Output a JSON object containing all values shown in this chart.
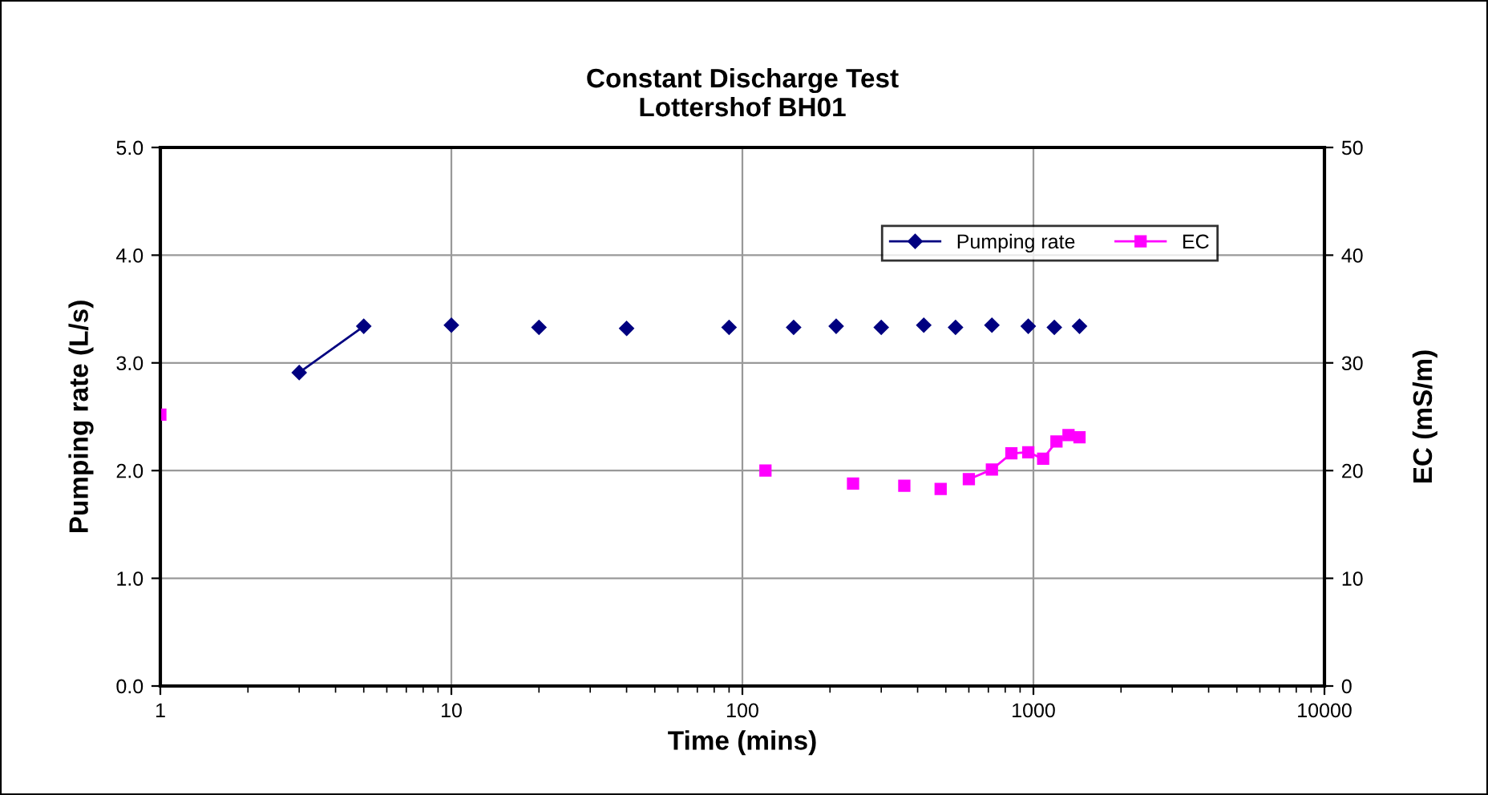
{
  "chart_data": {
    "type": "line",
    "title": "Constant Discharge Test\nLottershof BH01",
    "xlabel": "Time (mins)",
    "ylabel": "Pumping rate (L/s)",
    "y2label": "EC (mS/m)",
    "log": "x",
    "xlim": [
      1,
      10000
    ],
    "xticks": [
      1,
      10,
      100,
      1000,
      10000
    ],
    "ylim": [
      0,
      5
    ],
    "yticks": [
      {
        "value": 0,
        "label": "0.0"
      },
      {
        "value": 1,
        "label": "1.0"
      },
      {
        "value": 2,
        "label": "2.0"
      },
      {
        "value": 3,
        "label": "3.0"
      },
      {
        "value": 4,
        "label": "4.0"
      },
      {
        "value": 5,
        "label": "5.0"
      }
    ],
    "y2lim": [
      0,
      50
    ],
    "y2ticks": [
      0,
      10,
      20,
      30,
      40,
      50
    ],
    "grid": true,
    "legend": "top right",
    "line_style": "solid",
    "series": [
      {
        "name": "Pumping rate",
        "color": "#000080",
        "marker": "diamond",
        "x": [
          3,
          5,
          7,
          10,
          14,
          20,
          28,
          40,
          60,
          90,
          120,
          150,
          180,
          210,
          250,
          300,
          350,
          420,
          480,
          540,
          630,
          720,
          840,
          960,
          1070,
          1180,
          1300,
          1440
        ],
        "values": [
          2.91,
          3.34,
          null,
          3.35,
          null,
          3.33,
          null,
          3.32,
          null,
          3.33,
          null,
          3.33,
          null,
          3.34,
          null,
          3.33,
          null,
          3.35,
          null,
          3.33,
          null,
          3.35,
          null,
          3.34,
          null,
          3.33,
          null,
          3.34
        ]
      },
      {
        "name": "EC",
        "color": "#ff00ff",
        "marker": "square",
        "axis": "y2",
        "x": [
          1,
          10,
          120,
          170,
          240,
          290,
          360,
          420,
          480,
          540,
          600,
          720,
          840,
          960,
          1080,
          1200,
          1320,
          1440
        ],
        "values": [
          25.2,
          null,
          20.0,
          null,
          18.8,
          null,
          18.6,
          null,
          18.3,
          null,
          19.2,
          20.1,
          21.6,
          21.7,
          21.1,
          22.7,
          23.3,
          23.1
        ]
      }
    ]
  }
}
